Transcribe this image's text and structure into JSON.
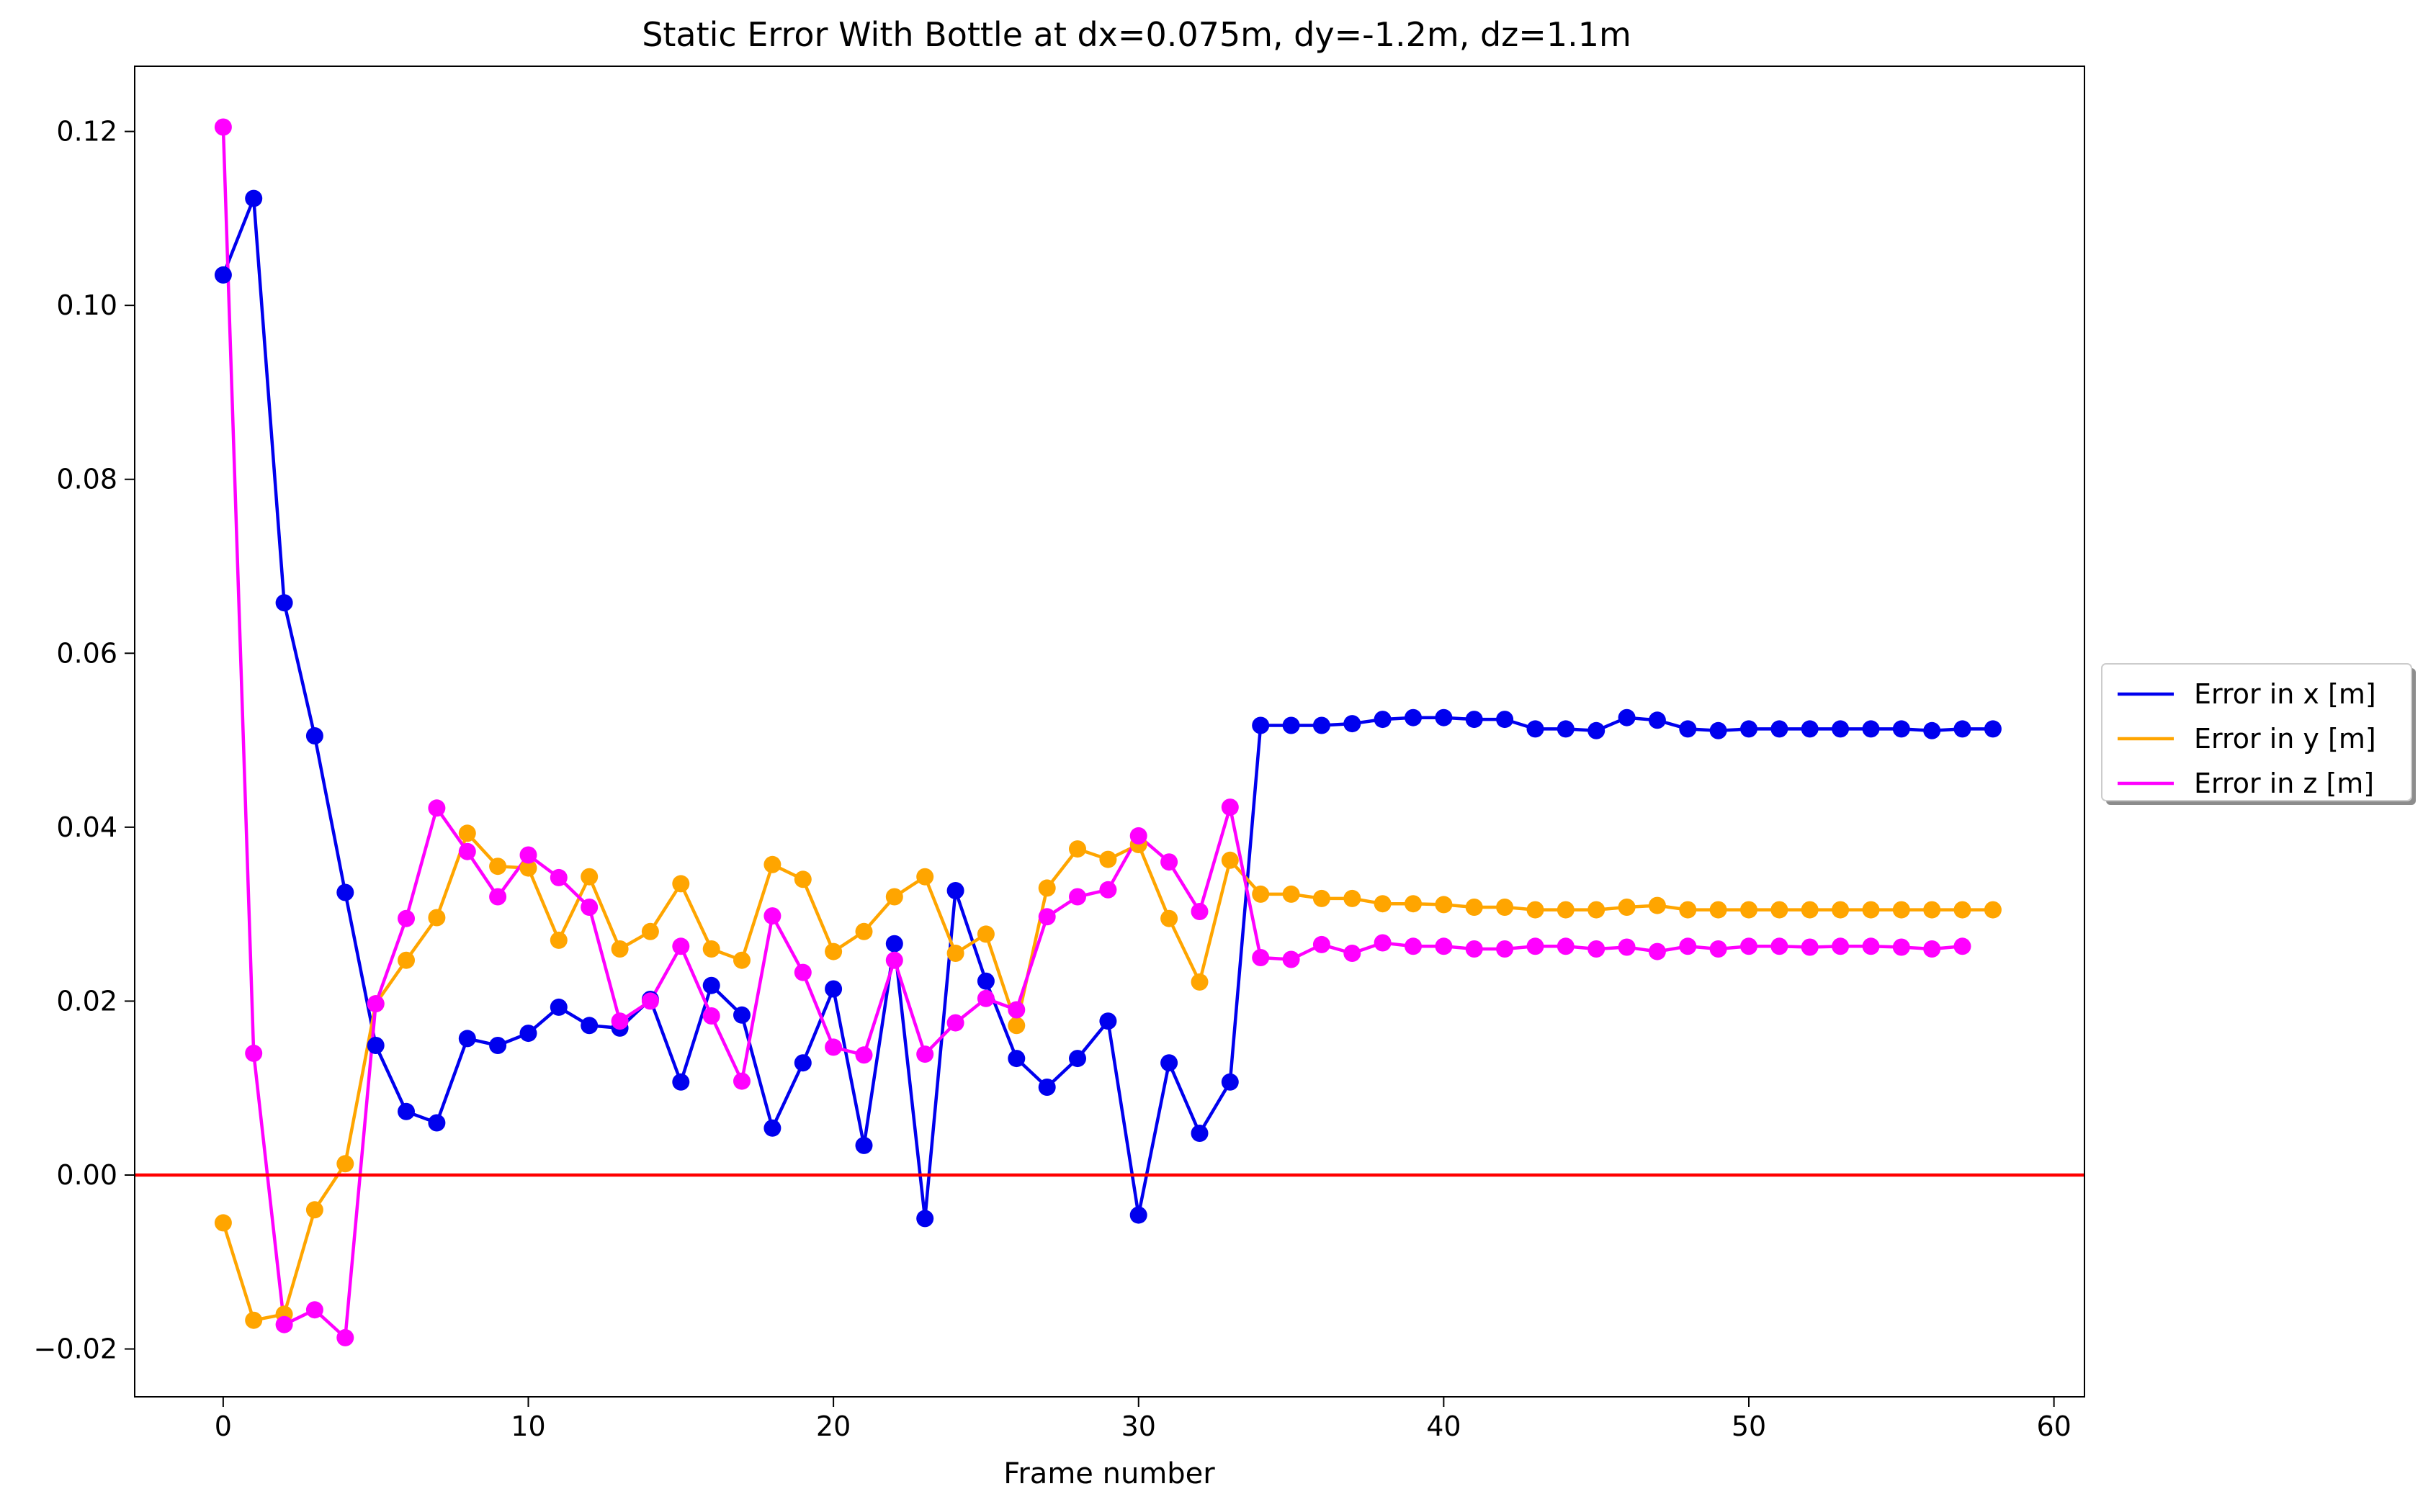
{
  "chart_data": {
    "type": "line",
    "title": "Static Error With Bottle at dx=0.075m, dy=-1.2m, dz=1.1m",
    "xlabel": "Frame number",
    "ylabel": "",
    "xlim": [
      -2.9,
      61
    ],
    "ylim": [
      -0.0255,
      0.1275
    ],
    "xticks": [
      0,
      10,
      20,
      30,
      40,
      50,
      60
    ],
    "xtick_labels": [
      "0",
      "10",
      "20",
      "30",
      "40",
      "50",
      "60"
    ],
    "yticks": [
      -0.02,
      0.0,
      0.02,
      0.04,
      0.06,
      0.08,
      0.1,
      0.12
    ],
    "ytick_labels": [
      "−0.02",
      "0.00",
      "0.02",
      "0.04",
      "0.06",
      "0.08",
      "0.10",
      "0.12"
    ],
    "grid": false,
    "legend_position": "outside-right",
    "reference_line": {
      "y": 0.0,
      "color": "#ff0000"
    },
    "series": [
      {
        "name": "Error in x [m]",
        "color": "#0000ee",
        "x": [
          0,
          1,
          2,
          3,
          4,
          5,
          6,
          7,
          8,
          9,
          10,
          11,
          12,
          13,
          14,
          15,
          16,
          17,
          18,
          19,
          20,
          21,
          22,
          23,
          24,
          25,
          26,
          27,
          28,
          29,
          30,
          31,
          32,
          33,
          34,
          35,
          36,
          37,
          38,
          39,
          40,
          41,
          42,
          43,
          44,
          45,
          46,
          47,
          48,
          49,
          50,
          51,
          52,
          53,
          54,
          55,
          56,
          57,
          58
        ],
        "y": [
          0.1035,
          0.1123,
          0.0658,
          0.0505,
          0.0325,
          0.0149,
          0.0073,
          0.006,
          0.0157,
          0.0149,
          0.0163,
          0.0193,
          0.0172,
          0.0169,
          0.0202,
          0.0107,
          0.0218,
          0.0184,
          0.0054,
          0.0129,
          0.0214,
          0.0034,
          0.0266,
          -0.005,
          0.0327,
          0.0223,
          0.0134,
          0.0101,
          0.0134,
          0.0177,
          -0.0046,
          0.0129,
          0.0048,
          0.0107,
          0.0517,
          0.0517,
          0.0517,
          0.0519,
          0.0524,
          0.0526,
          0.0526,
          0.0524,
          0.0524,
          0.0513,
          0.0513,
          0.0511,
          0.0526,
          0.0523,
          0.0513,
          0.0511,
          0.0513,
          0.0513,
          0.0513,
          0.0513,
          0.0513,
          0.0513,
          0.0511,
          0.0513,
          0.0513
        ]
      },
      {
        "name": "Error in y [m]",
        "color": "#ffa500",
        "x": [
          0,
          1,
          2,
          3,
          4,
          5,
          6,
          7,
          8,
          9,
          10,
          11,
          12,
          13,
          14,
          15,
          16,
          17,
          18,
          19,
          20,
          21,
          22,
          23,
          24,
          25,
          26,
          27,
          28,
          29,
          30,
          31,
          32,
          33,
          34,
          35,
          36,
          37,
          38,
          39,
          40,
          41,
          42,
          43,
          44,
          45,
          46,
          47,
          48,
          49,
          50,
          51,
          52,
          53,
          54,
          55,
          56,
          57,
          58
        ],
        "y": [
          -0.0055,
          -0.0167,
          -0.016,
          -0.004,
          0.0013,
          0.0197,
          0.0247,
          0.0296,
          0.0393,
          0.0355,
          0.0353,
          0.027,
          0.0343,
          0.026,
          0.028,
          0.0335,
          0.026,
          0.0247,
          0.0357,
          0.034,
          0.0257,
          0.028,
          0.032,
          0.0343,
          0.0255,
          0.0277,
          0.0172,
          0.033,
          0.0375,
          0.0363,
          0.038,
          0.0295,
          0.0222,
          0.0362,
          0.0323,
          0.0323,
          0.0318,
          0.0318,
          0.0312,
          0.0312,
          0.0311,
          0.0308,
          0.0308,
          0.0305,
          0.0305,
          0.0305,
          0.0308,
          0.031,
          0.0305,
          0.0305,
          0.0305,
          0.0305,
          0.0305,
          0.0305,
          0.0305,
          0.0305,
          0.0305,
          0.0305,
          0.0305
        ]
      },
      {
        "name": "Error in z [m]",
        "color": "#ff00ff",
        "x": [
          0,
          1,
          2,
          3,
          4,
          5,
          6,
          7,
          8,
          9,
          10,
          11,
          12,
          13,
          14,
          15,
          16,
          17,
          18,
          19,
          20,
          21,
          22,
          23,
          24,
          25,
          26,
          27,
          28,
          29,
          30,
          31,
          32,
          33,
          34,
          35,
          36,
          37,
          38,
          39,
          40,
          41,
          42,
          43,
          44,
          45,
          46,
          47,
          48,
          49,
          50,
          51,
          52,
          53,
          54,
          55,
          56,
          57
        ],
        "y": [
          0.1205,
          0.014,
          -0.0172,
          -0.0155,
          -0.0187,
          0.0197,
          0.0295,
          0.0422,
          0.0372,
          0.032,
          0.0368,
          0.0342,
          0.0308,
          0.0177,
          0.02,
          0.0263,
          0.0183,
          0.0108,
          0.0298,
          0.0233,
          0.0147,
          0.0138,
          0.0247,
          0.0139,
          0.0175,
          0.0203,
          0.019,
          0.0297,
          0.032,
          0.0328,
          0.039,
          0.036,
          0.0303,
          0.0423,
          0.025,
          0.0248,
          0.0265,
          0.0255,
          0.0267,
          0.0263,
          0.0263,
          0.026,
          0.026,
          0.0263,
          0.0263,
          0.026,
          0.0262,
          0.0257,
          0.0263,
          0.026,
          0.0263,
          0.0263,
          0.0262,
          0.0263,
          0.0263,
          0.0262,
          0.026,
          0.0263
        ]
      }
    ]
  }
}
